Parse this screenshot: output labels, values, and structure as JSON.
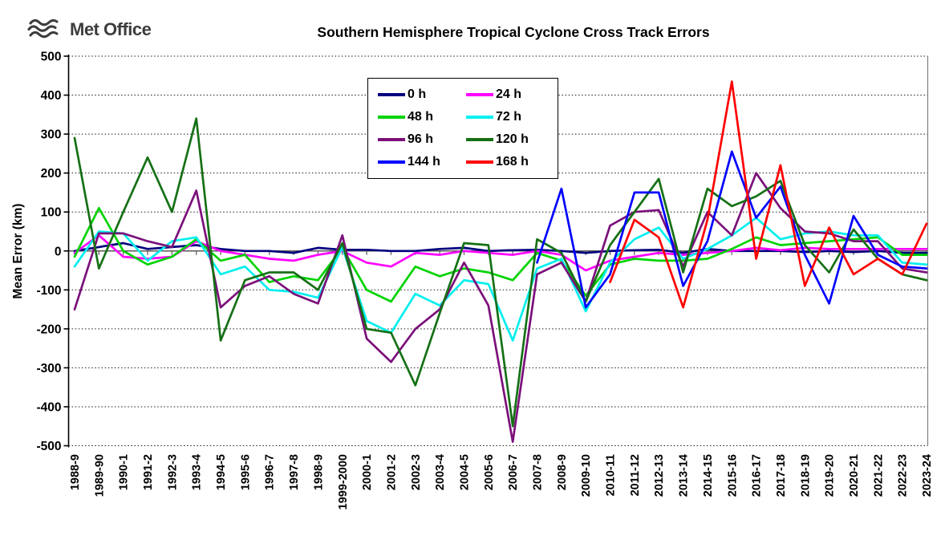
{
  "header": {
    "logo_text": "Met Office",
    "title": "Southern Hemisphere Tropical Cyclone Cross Track Errors"
  },
  "chart_data": {
    "type": "line",
    "title": "Southern Hemisphere Tropical Cyclone Cross Track Errors",
    "xlabel": "",
    "ylabel": "Mean Error (km)",
    "ylim": [
      -500,
      500
    ],
    "ytick_step": 100,
    "grid": "horizontal-dotted",
    "legend_position": "inside-upper-left",
    "categories": [
      "1988-9",
      "1989-90",
      "1990-1",
      "1991-2",
      "1992-3",
      "1993-4",
      "1994-5",
      "1995-6",
      "1996-7",
      "1997-8",
      "1998-9",
      "1999-2000",
      "2000-1",
      "2001-2",
      "2002-3",
      "2003-4",
      "2004-5",
      "2005-6",
      "2006-7",
      "2007-8",
      "2008-9",
      "2009-10",
      "2010-11",
      "2011-12",
      "2012-13",
      "2013-14",
      "2014-15",
      "2015-16",
      "2016-17",
      "2017-18",
      "2018-19",
      "2019-20",
      "2020-21",
      "2021-22",
      "2022-23",
      "2023-24"
    ],
    "series": [
      {
        "name": "0 h",
        "color": "#00007E",
        "values": [
          0,
          10,
          20,
          5,
          10,
          15,
          5,
          0,
          0,
          -5,
          8,
          3,
          3,
          0,
          0,
          5,
          8,
          0,
          2,
          3,
          0,
          -5,
          0,
          2,
          3,
          -5,
          5,
          0,
          0,
          0,
          -3,
          0,
          -3,
          0,
          -5,
          -5
        ]
      },
      {
        "name": "24 h",
        "color": "#FF00FF",
        "values": [
          -5,
          40,
          -15,
          -20,
          -15,
          25,
          0,
          -10,
          -20,
          -25,
          -10,
          0,
          -30,
          -40,
          -5,
          -10,
          0,
          -5,
          -10,
          0,
          -10,
          -50,
          -25,
          -15,
          -5,
          -10,
          -5,
          0,
          8,
          2,
          8,
          5,
          5,
          5,
          5,
          5
        ]
      },
      {
        "name": "48 h",
        "color": "#00D300",
        "values": [
          -15,
          110,
          0,
          -35,
          -15,
          30,
          -25,
          -10,
          -80,
          -65,
          -75,
          8,
          -100,
          -130,
          -40,
          -65,
          -45,
          -55,
          -75,
          -5,
          -25,
          -115,
          -35,
          -20,
          -25,
          -25,
          -20,
          5,
          35,
          15,
          20,
          25,
          30,
          35,
          -10,
          -10
        ]
      },
      {
        "name": "72 h",
        "color": "#00EFEF",
        "values": [
          -40,
          50,
          45,
          -25,
          25,
          35,
          -60,
          -40,
          -100,
          -105,
          -120,
          10,
          -180,
          -210,
          -110,
          -140,
          -75,
          -85,
          -230,
          -45,
          -20,
          -155,
          -30,
          30,
          60,
          -20,
          5,
          40,
          85,
          30,
          45,
          50,
          40,
          40,
          -30,
          -35
        ]
      },
      {
        "name": "96 h",
        "color": "#7B107B",
        "values": [
          -150,
          45,
          45,
          25,
          10,
          155,
          -145,
          -90,
          -65,
          -110,
          -135,
          40,
          -225,
          -285,
          -200,
          -150,
          -30,
          -140,
          -490,
          -60,
          -30,
          -130,
          65,
          100,
          105,
          -40,
          100,
          40,
          200,
          110,
          50,
          45,
          25,
          25,
          -45,
          -55
        ]
      },
      {
        "name": "120 h",
        "color": "#157015",
        "values": [
          290,
          -45,
          100,
          240,
          100,
          340,
          -230,
          -75,
          -55,
          -55,
          -100,
          20,
          -200,
          -210,
          -345,
          -160,
          20,
          15,
          -450,
          30,
          -5,
          -130,
          15,
          100,
          185,
          -55,
          160,
          115,
          140,
          180,
          15,
          -55,
          55,
          -20,
          -60,
          -75
        ]
      },
      {
        "name": "144 h",
        "color": "#0000FF",
        "values": [
          null,
          null,
          null,
          null,
          null,
          null,
          null,
          null,
          null,
          null,
          null,
          null,
          null,
          null,
          null,
          null,
          null,
          null,
          null,
          -30,
          160,
          -145,
          -60,
          150,
          150,
          -90,
          25,
          255,
          85,
          165,
          -10,
          -135,
          90,
          -10,
          -40,
          -45
        ]
      },
      {
        "name": "168 h",
        "color": "#FF0000",
        "values": [
          null,
          null,
          null,
          null,
          null,
          null,
          null,
          null,
          null,
          null,
          null,
          null,
          null,
          null,
          null,
          null,
          null,
          null,
          null,
          null,
          null,
          null,
          -80,
          80,
          35,
          -145,
          80,
          435,
          -20,
          220,
          -90,
          60,
          -60,
          -20,
          -60,
          70
        ]
      }
    ]
  }
}
